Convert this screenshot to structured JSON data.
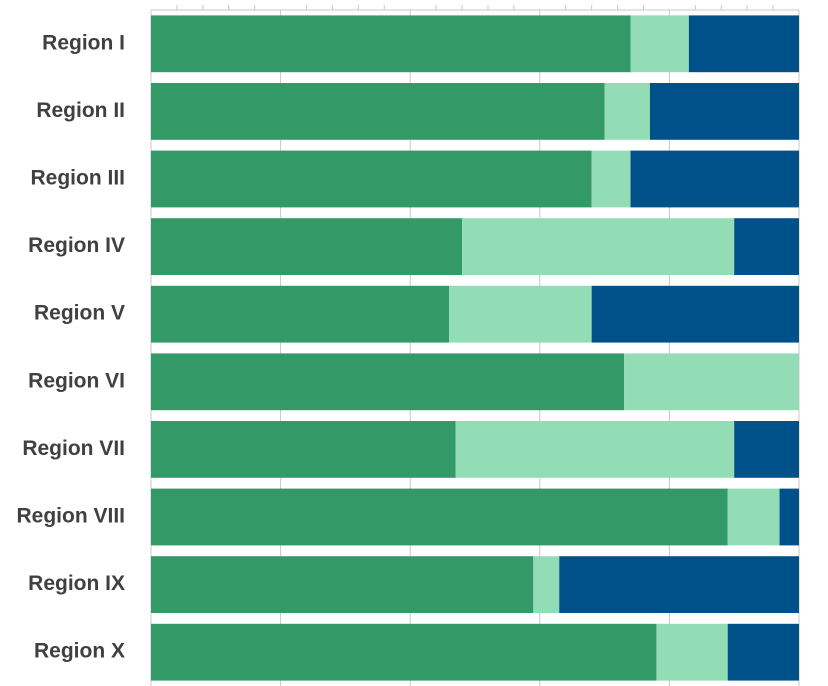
{
  "chart_data": {
    "type": "stacked_bar_horizontal",
    "categories": [
      "Region I",
      "Region II",
      "Region III",
      "Region IV",
      "Region V",
      "Region VI",
      "Region VII",
      "Region VIII",
      "Region IX",
      "Region X"
    ],
    "series": [
      {
        "color": "#339966",
        "values": [
          74,
          70,
          68,
          48,
          46,
          73,
          47,
          89,
          59,
          78
        ]
      },
      {
        "color": "#92ddb6",
        "values": [
          9,
          7,
          6,
          42,
          22,
          27,
          43,
          8,
          4,
          11
        ]
      },
      {
        "color": "#005089",
        "values": [
          17,
          23,
          26,
          10,
          32,
          0,
          10,
          3,
          37,
          11
        ]
      }
    ],
    "xlim": [
      0,
      100
    ],
    "xticks": [
      0,
      20,
      40,
      60,
      80,
      100
    ],
    "grid": true
  }
}
